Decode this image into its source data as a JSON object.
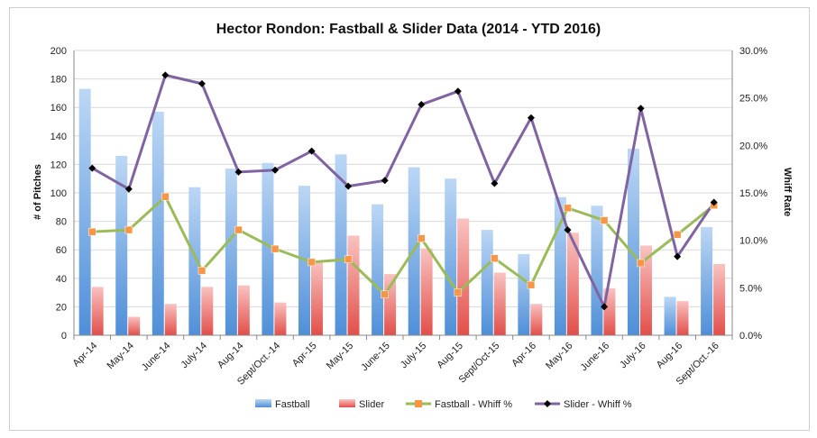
{
  "chart_data": {
    "type": "bar",
    "title": "Hector Rondon: Fastball & Slider Data (2014 - YTD 2016)",
    "ylabel": "# of Pitches",
    "y2label": "Whiff Rate",
    "ylim": [
      0,
      200
    ],
    "y2lim": [
      0,
      30
    ],
    "yticks": [
      "0",
      "20",
      "40",
      "60",
      "80",
      "100",
      "120",
      "140",
      "160",
      "180",
      "200"
    ],
    "y2ticks": [
      "0.0%",
      "5.0%",
      "10.0%",
      "15.0%",
      "20.0%",
      "25.0%",
      "30.0%"
    ],
    "categories": [
      "Apr-14",
      "May-14",
      "June-14",
      "July-14",
      "Aug-14",
      "Sept/Oct.-14",
      "Apr-15",
      "May-15",
      "June-15",
      "July-15",
      "Aug-15",
      "Sept/Oct-15",
      "Apr-16",
      "May-16",
      "June-16",
      "July-16",
      "Aug-16",
      "Sept/Oct.-16"
    ],
    "series": [
      {
        "name": "Fastball",
        "kind": "bar",
        "axis": "left",
        "color": "#6fa8e6",
        "values": [
          173,
          126,
          157,
          104,
          117,
          121,
          105,
          127,
          92,
          118,
          110,
          74,
          57,
          97,
          91,
          131,
          27,
          76
        ]
      },
      {
        "name": "Slider",
        "kind": "bar",
        "axis": "left",
        "color": "#ee6b67",
        "values": [
          34,
          13,
          22,
          34,
          35,
          23,
          52,
          70,
          43,
          61,
          82,
          44,
          22,
          72,
          33,
          63,
          24,
          50
        ]
      },
      {
        "name": "Fastball -  Whiff %",
        "kind": "line",
        "axis": "right",
        "color": "#9bbb59",
        "marker_color": "#f79646",
        "values": [
          10.9,
          11.1,
          14.6,
          6.8,
          11.1,
          9.1,
          7.7,
          8.0,
          4.3,
          10.2,
          4.5,
          8.1,
          5.3,
          13.4,
          12.1,
          7.6,
          10.6,
          13.7
        ]
      },
      {
        "name": "Slider - Whiff %",
        "kind": "line",
        "axis": "right",
        "color": "#8064a2",
        "marker_color": "#000000",
        "values": [
          17.6,
          15.4,
          27.4,
          26.5,
          17.2,
          17.4,
          19.4,
          15.7,
          16.3,
          24.3,
          25.7,
          16.0,
          22.9,
          11.1,
          3.0,
          23.9,
          8.3,
          14.0
        ]
      }
    ],
    "legend_position": "bottom",
    "grid": true
  }
}
